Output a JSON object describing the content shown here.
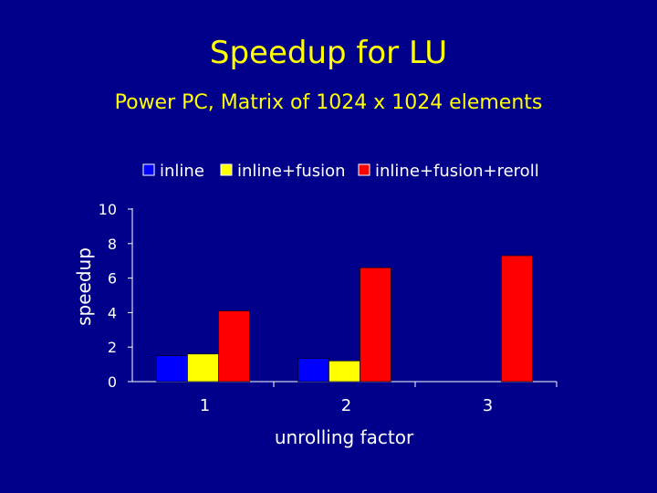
{
  "slide": {
    "title": "Speedup for LU",
    "subtitle": "Power PC, Matrix of 1024 x 1024 elements"
  },
  "colors": {
    "background": "#00008B",
    "title": "#FFFF00",
    "axis": "#FFFFFF"
  },
  "chart_data": {
    "type": "bar",
    "title": "",
    "xlabel": "unrolling factor",
    "ylabel": "speedup",
    "categories": [
      "1",
      "2",
      "3"
    ],
    "ylim": [
      0,
      10
    ],
    "yticks": [
      0,
      2,
      4,
      6,
      8,
      10
    ],
    "grid": false,
    "legend_position": "top",
    "series": [
      {
        "name": "inline",
        "color": "#0000FF",
        "values": [
          1.5,
          1.35,
          null
        ]
      },
      {
        "name": "inline+fusion",
        "color": "#FFFF00",
        "values": [
          1.6,
          1.2,
          null
        ]
      },
      {
        "name": "inline+fusion+reroll",
        "color": "#FF0000",
        "values": [
          4.1,
          6.6,
          7.3
        ]
      }
    ]
  }
}
